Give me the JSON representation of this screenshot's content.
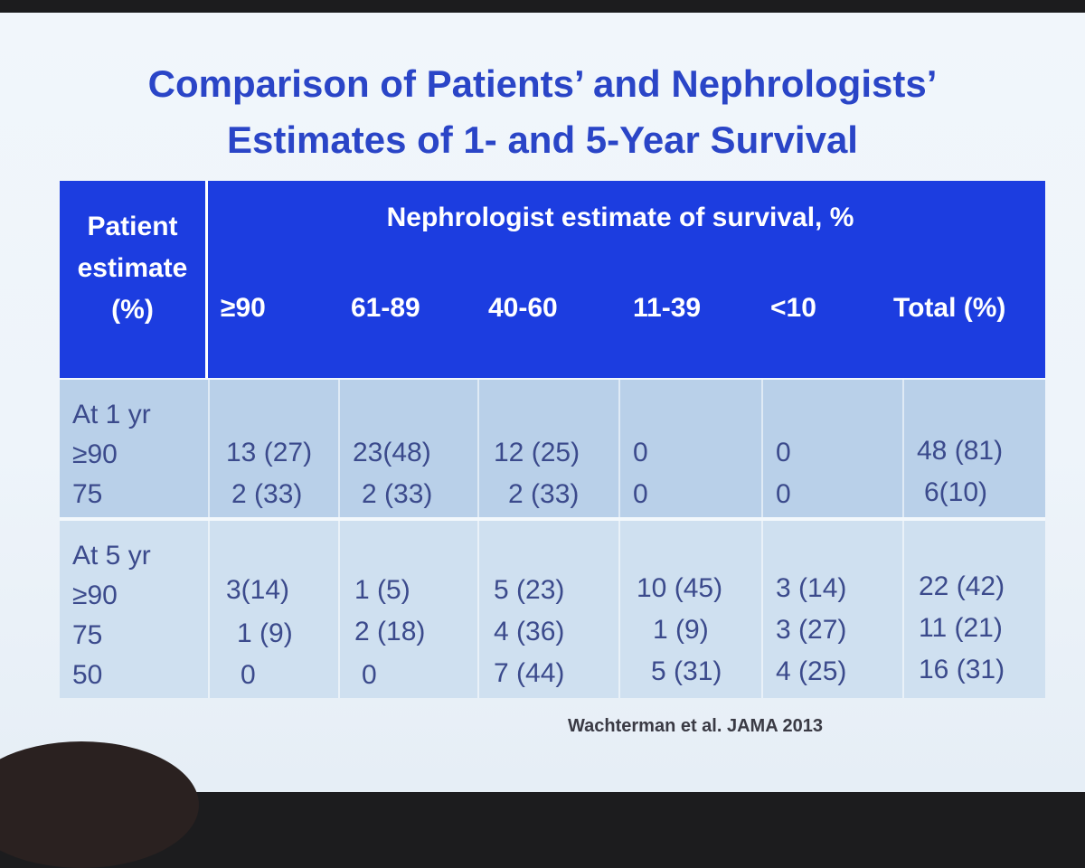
{
  "title": {
    "line1": "Comparison of Patients’ and Nephrologists’",
    "line2": "Estimates of 1- and 5-Year Survival"
  },
  "table": {
    "corner": [
      "Patient",
      "estimate",
      "(%)"
    ],
    "super_header": "Nephrologist estimate of survival, %",
    "columns": [
      "≥90",
      "61-89",
      "40-60",
      "11-39",
      "<10",
      "Total (%)"
    ],
    "blocks": [
      {
        "label": "At 1 yr",
        "rows": [
          {
            "estimate": "≥90",
            "cells": [
              "13 (27)",
              "23(48)",
              "12 (25)",
              "0",
              "0",
              "48 (81)"
            ]
          },
          {
            "estimate": "75",
            "cells": [
              "2 (33)",
              "2 (33)",
              "2 (33)",
              "0",
              "0",
              "6(10)"
            ]
          }
        ]
      },
      {
        "label": "At 5 yr",
        "rows": [
          {
            "estimate": "≥90",
            "cells": [
              "3(14)",
              "1 (5)",
              "5 (23)",
              "10 (45)",
              "3 (14)",
              "22 (42)"
            ]
          },
          {
            "estimate": "75",
            "cells": [
              "1 (9)",
              "2 (18)",
              "4 (36)",
              "1 (9)",
              "3 (27)",
              "11 (21)"
            ]
          },
          {
            "estimate": "50",
            "cells": [
              "0",
              "0",
              "7 (44)",
              "5 (31)",
              "4 (25)",
              "16 (31)"
            ]
          }
        ]
      }
    ]
  },
  "citation": "Wachterman et al. JAMA 2013"
}
